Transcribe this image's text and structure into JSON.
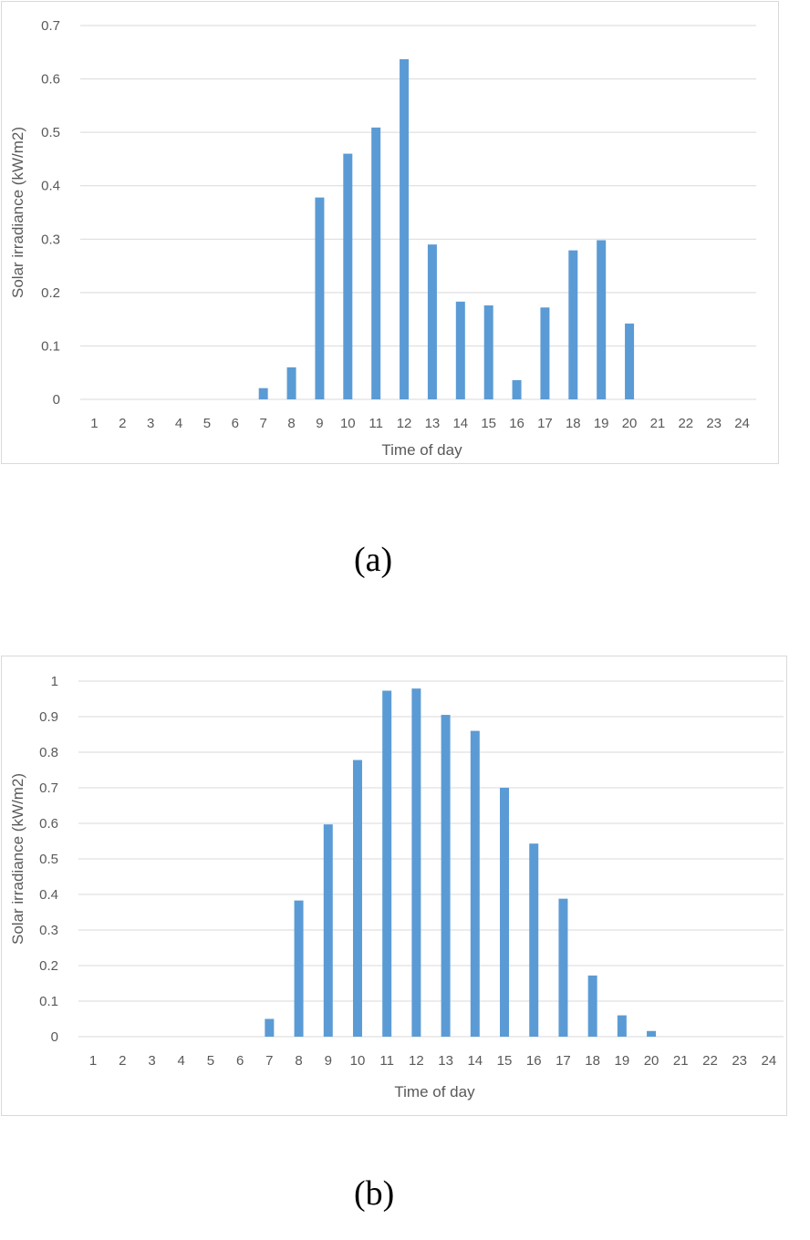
{
  "colors": {
    "bar": "#5b9bd5",
    "grid": "#d9d9d9",
    "text": "#595959"
  },
  "captions": {
    "a": "(a)",
    "b": "(b)"
  },
  "chart_data": [
    {
      "type": "bar",
      "title": "",
      "xlabel": "Time of day",
      "ylabel": "Solar irradiance (kW/m2)",
      "categories": [
        "1",
        "2",
        "3",
        "4",
        "5",
        "6",
        "7",
        "8",
        "9",
        "10",
        "11",
        "12",
        "13",
        "14",
        "15",
        "16",
        "17",
        "18",
        "19",
        "20",
        "21",
        "22",
        "23",
        "24"
      ],
      "values": [
        0,
        0,
        0,
        0,
        0,
        0,
        0.021,
        0.06,
        0.378,
        0.46,
        0.509,
        0.637,
        0.29,
        0.183,
        0.176,
        0.036,
        0.172,
        0.279,
        0.298,
        0.142,
        0,
        0,
        0,
        0
      ],
      "ylim": [
        0,
        0.7
      ],
      "yticks": [
        "0",
        "0.1",
        "0.2",
        "0.3",
        "0.4",
        "0.5",
        "0.6",
        "0.7"
      ],
      "grid": true
    },
    {
      "type": "bar",
      "title": "",
      "xlabel": "Time of day",
      "ylabel": "Solar irradiance (kW/m2)",
      "categories": [
        "1",
        "2",
        "3",
        "4",
        "5",
        "6",
        "7",
        "8",
        "9",
        "10",
        "11",
        "12",
        "13",
        "14",
        "15",
        "16",
        "17",
        "18",
        "19",
        "20",
        "21",
        "22",
        "23",
        "24"
      ],
      "values": [
        0,
        0,
        0,
        0,
        0,
        0,
        0.05,
        0.383,
        0.597,
        0.778,
        0.973,
        0.979,
        0.905,
        0.86,
        0.7,
        0.543,
        0.388,
        0.172,
        0.06,
        0.016,
        0,
        0,
        0,
        0
      ],
      "ylim": [
        0,
        1
      ],
      "yticks": [
        "0",
        "0.1",
        "0.2",
        "0.3",
        "0.4",
        "0.5",
        "0.6",
        "0.7",
        "0.8",
        "0.9",
        "1"
      ],
      "grid": true
    }
  ]
}
